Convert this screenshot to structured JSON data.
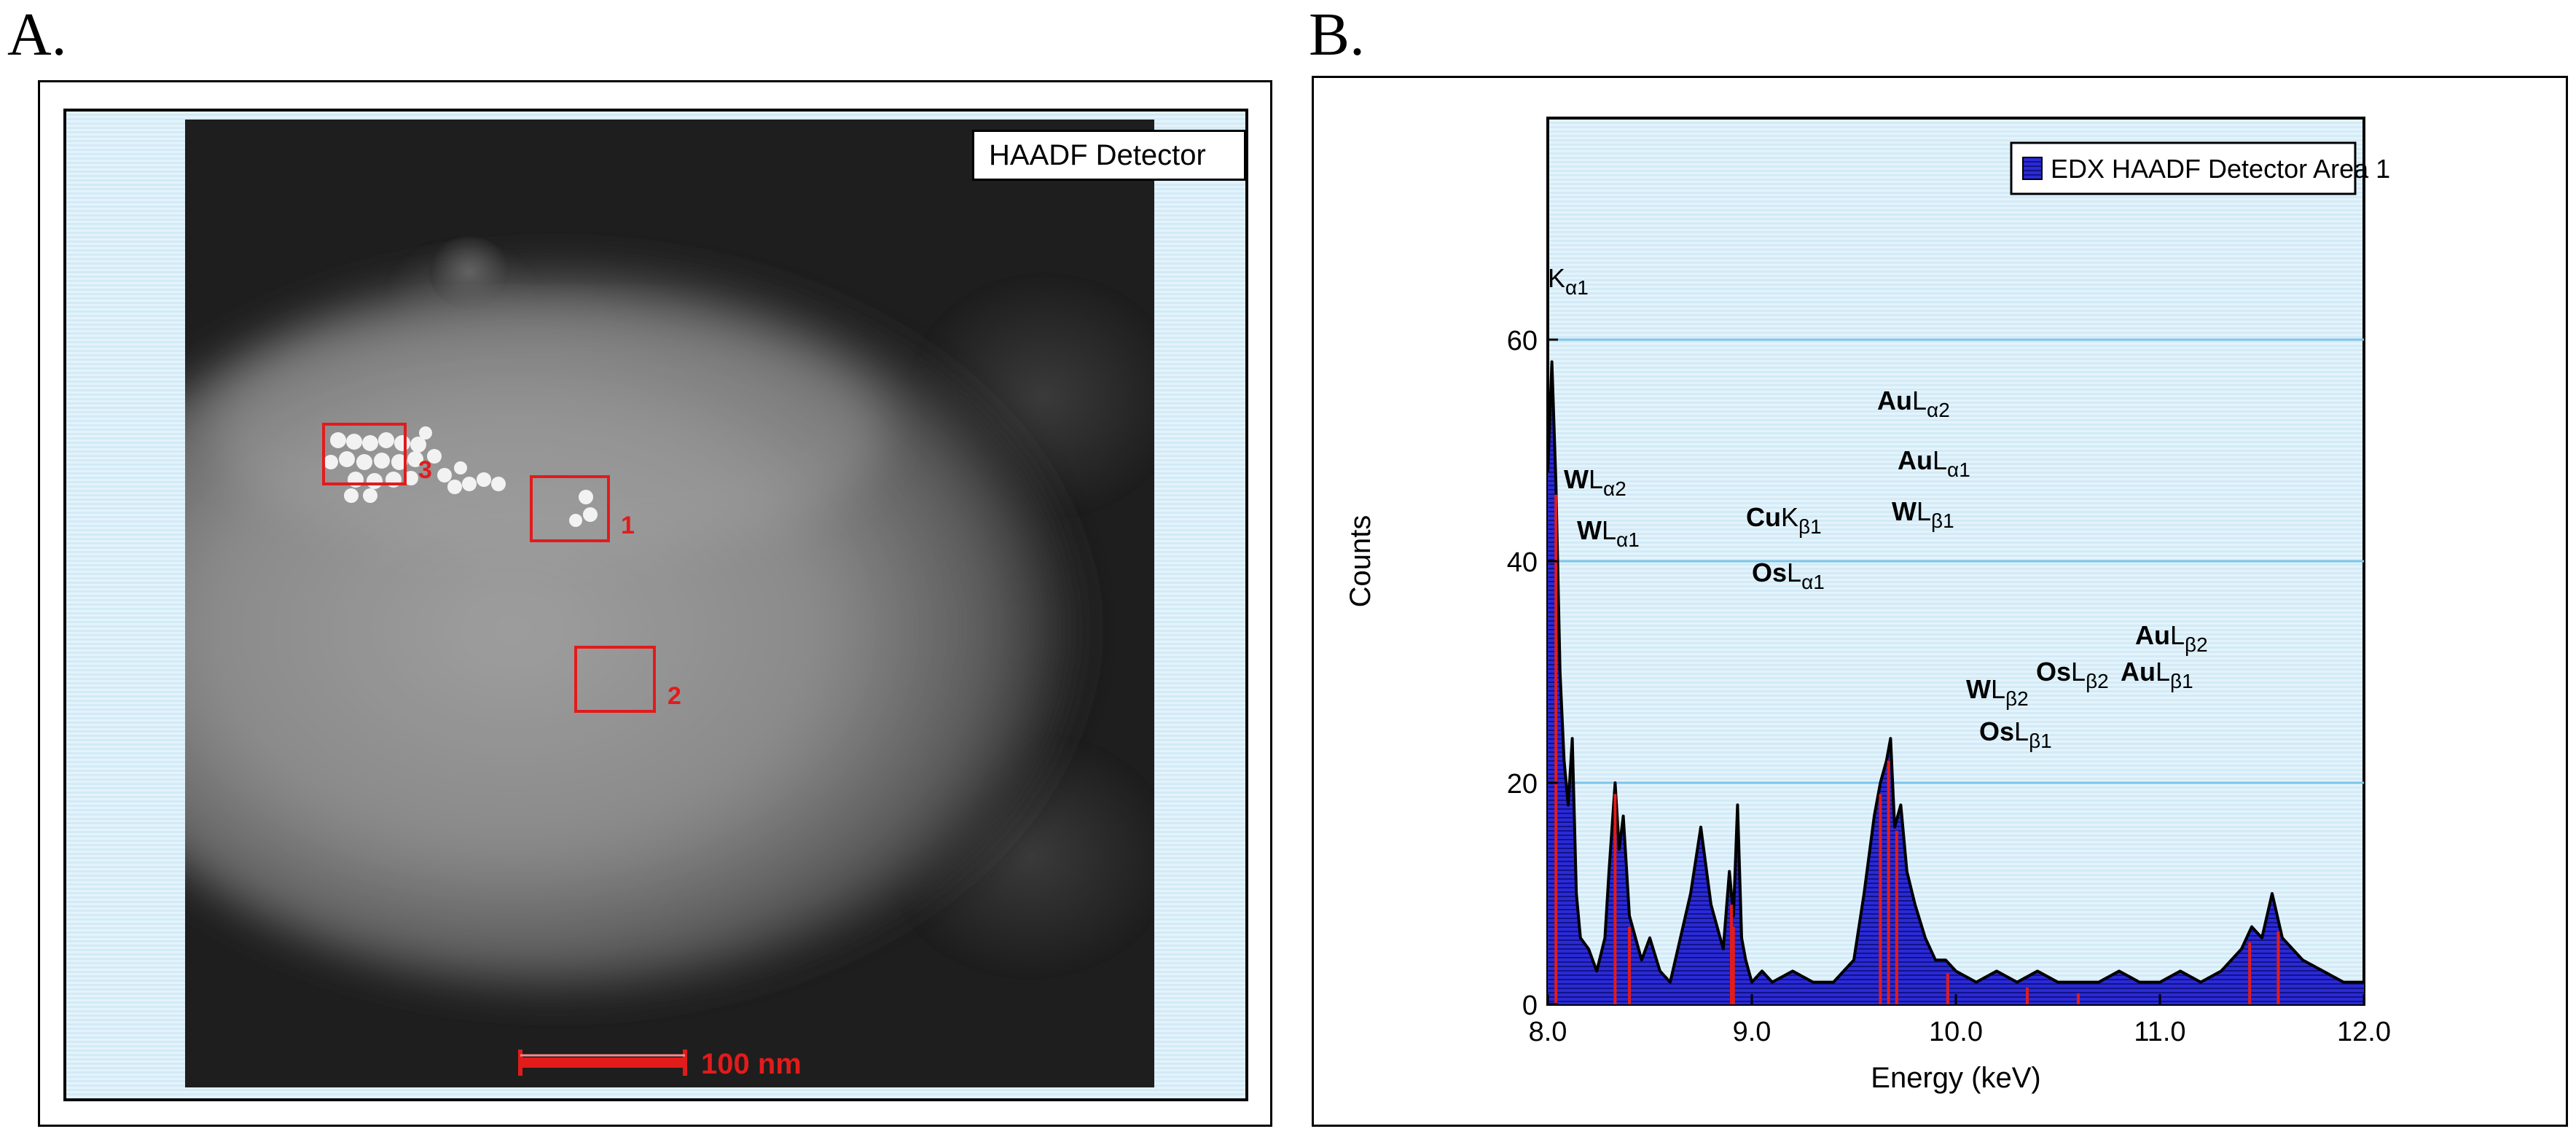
{
  "panel_a": {
    "letter": "A.",
    "detector_label": "HAADF Detector",
    "regions": [
      {
        "label": "1"
      },
      {
        "label": "2"
      },
      {
        "label": "3"
      }
    ],
    "scale_bar_label": "100 nm",
    "colors": {
      "roi": "#e21b1b",
      "background": "#d9eef9"
    }
  },
  "panel_b": {
    "letter": "B.",
    "chart_data": {
      "type": "area",
      "title": "",
      "xlabel": "Energy (keV)",
      "ylabel": "Counts",
      "xlim": [
        8.0,
        12.0
      ],
      "ylim": [
        0,
        80
      ],
      "x_ticks": [
        "8.0",
        "9.0",
        "10.0",
        "11.0",
        "12.0"
      ],
      "y_ticks": [
        "0",
        "20",
        "40",
        "60"
      ],
      "grid": "horizontal",
      "legend": {
        "entry": "EDX HAADF Detector Area 1",
        "placement": "top-right"
      },
      "colors": {
        "fill": "#2424c8",
        "line": "#000000",
        "markers": "#e21b1b",
        "grid": "#7cc4ea"
      },
      "series": [
        {
          "name": "EDX HAADF Detector Area 1",
          "x": [
            8.0,
            8.02,
            8.04,
            8.06,
            8.08,
            8.1,
            8.12,
            8.14,
            8.16,
            8.2,
            8.24,
            8.28,
            8.3,
            8.33,
            8.35,
            8.37,
            8.4,
            8.43,
            8.46,
            8.5,
            8.55,
            8.6,
            8.65,
            8.7,
            8.75,
            8.8,
            8.83,
            8.86,
            8.89,
            8.91,
            8.93,
            8.95,
            8.97,
            9.0,
            9.05,
            9.1,
            9.2,
            9.3,
            9.4,
            9.5,
            9.55,
            9.6,
            9.63,
            9.66,
            9.68,
            9.7,
            9.73,
            9.76,
            9.8,
            9.85,
            9.9,
            9.95,
            10.0,
            10.1,
            10.2,
            10.3,
            10.4,
            10.5,
            10.6,
            10.7,
            10.8,
            10.9,
            11.0,
            11.1,
            11.2,
            11.3,
            11.4,
            11.45,
            11.5,
            11.55,
            11.6,
            11.7,
            11.8,
            11.9,
            12.0
          ],
          "y": [
            48,
            58,
            47,
            30,
            22,
            18,
            24,
            10,
            6,
            5,
            3,
            6,
            12,
            20,
            14,
            17,
            8,
            6,
            4,
            6,
            3,
            2,
            6,
            10,
            16,
            9,
            7,
            5,
            12,
            8,
            18,
            6,
            4,
            2,
            3,
            2,
            3,
            2,
            2,
            4,
            10,
            17,
            20,
            22,
            24,
            16,
            18,
            12,
            9,
            6,
            4,
            4,
            3,
            2,
            3,
            2,
            3,
            2,
            2,
            2,
            3,
            2,
            2,
            3,
            2,
            3,
            5,
            7,
            6,
            10,
            6,
            4,
            3,
            2,
            2
          ]
        }
      ],
      "annotations": [
        {
          "element": "",
          "line": "K",
          "sub": "α1",
          "energy": 8.04
        },
        {
          "element": "W",
          "line": "L",
          "sub": "α2",
          "energy": 8.33
        },
        {
          "element": "W",
          "line": "L",
          "sub": "α1",
          "energy": 8.4
        },
        {
          "element": "Cu",
          "line": "K",
          "sub": "β1",
          "energy": 8.9
        },
        {
          "element": "Os",
          "line": "L",
          "sub": "α1",
          "energy": 8.91
        },
        {
          "element": "Au",
          "line": "L",
          "sub": "α2",
          "energy": 9.63
        },
        {
          "element": "Au",
          "line": "L",
          "sub": "α1",
          "energy": 9.71
        },
        {
          "element": "W",
          "line": "L",
          "sub": "β1",
          "energy": 9.67
        },
        {
          "element": "W",
          "line": "L",
          "sub": "β2",
          "energy": 9.96
        },
        {
          "element": "Os",
          "line": "L",
          "sub": "β1",
          "energy": 10.35
        },
        {
          "element": "Os",
          "line": "L",
          "sub": "β2",
          "energy": 10.6
        },
        {
          "element": "Au",
          "line": "L",
          "sub": "β1",
          "energy": 11.44
        },
        {
          "element": "Au",
          "line": "L",
          "sub": "β2",
          "energy": 11.58
        }
      ]
    }
  }
}
